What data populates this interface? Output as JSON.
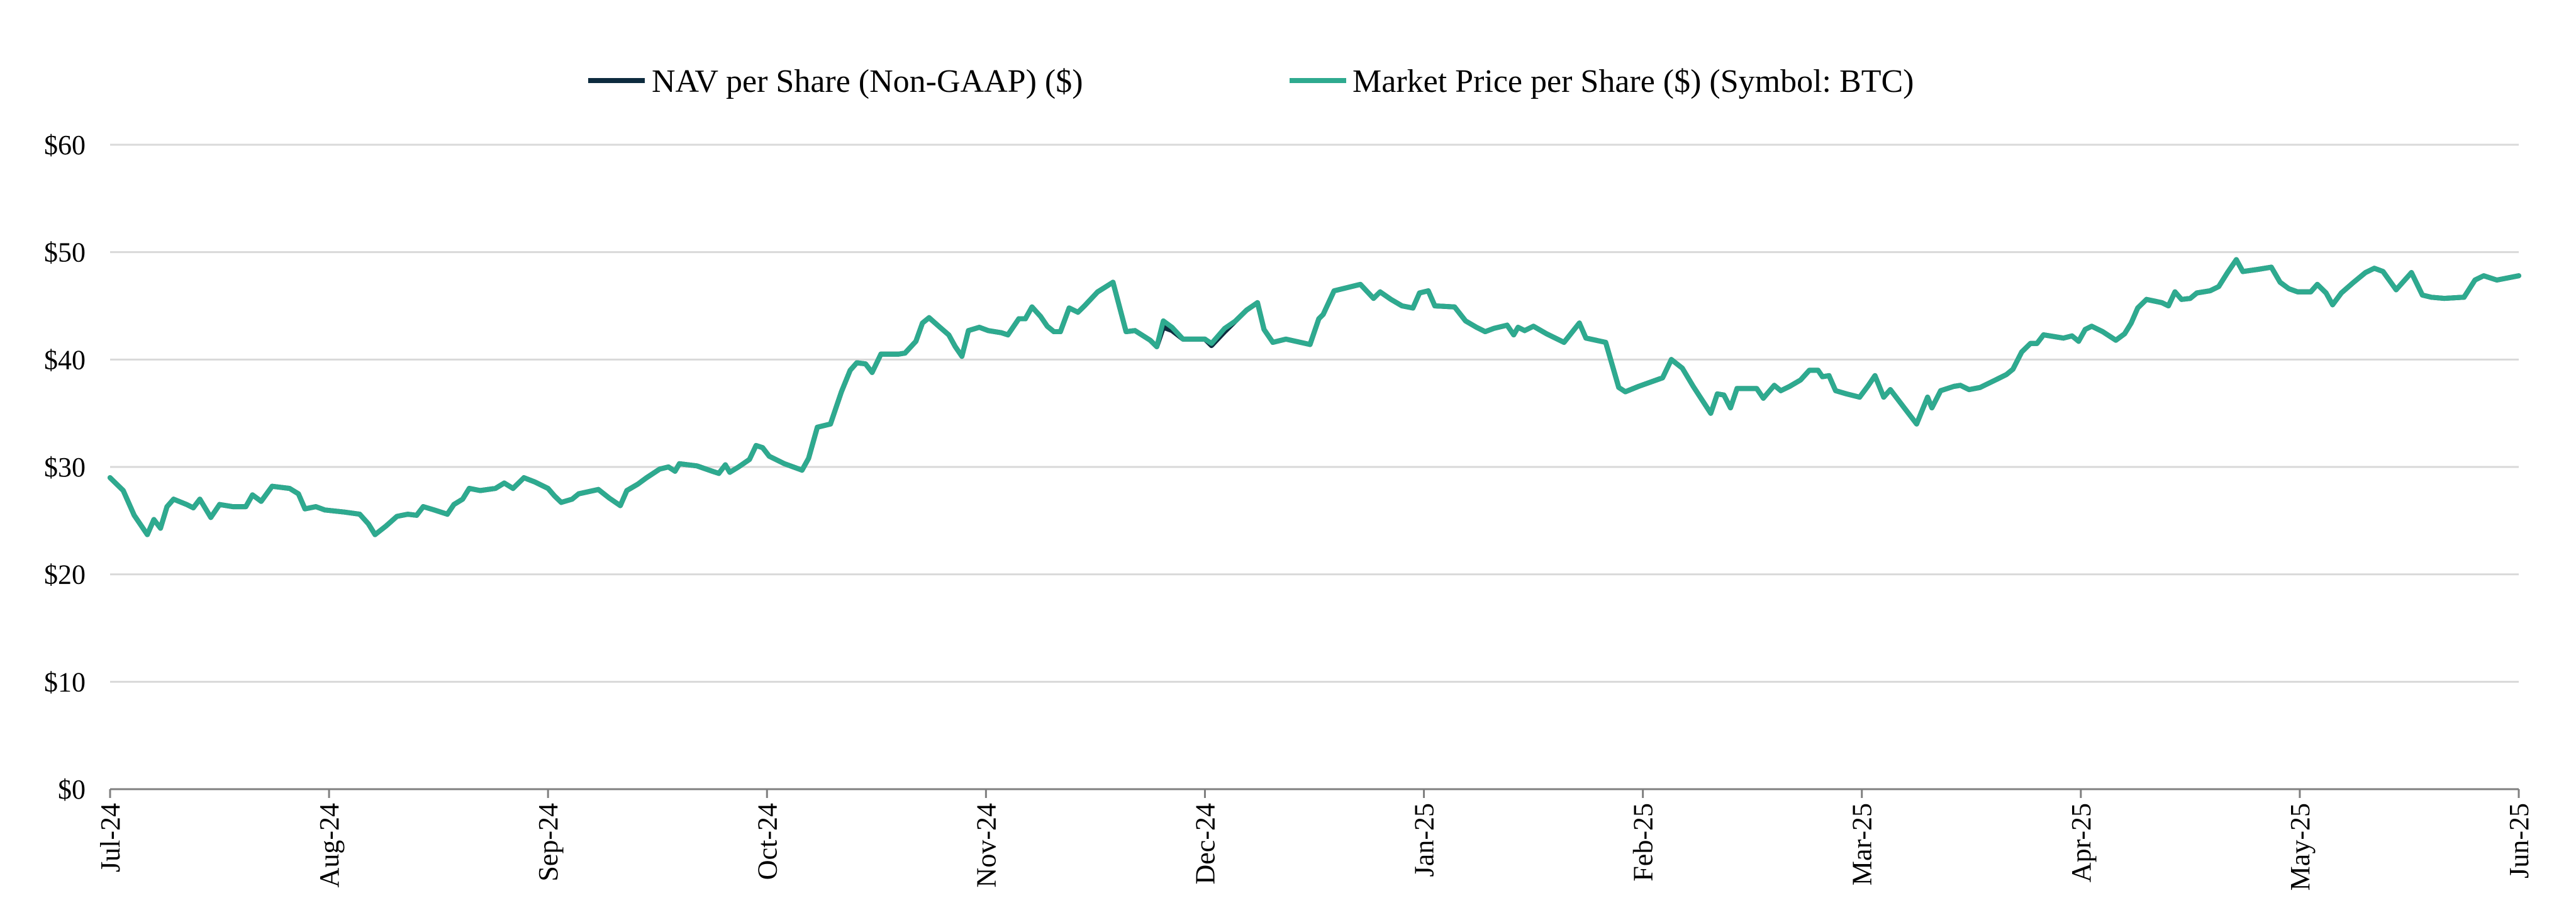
{
  "chart_data": {
    "type": "line",
    "legend": "top",
    "grid": true,
    "xlim": [
      0,
      11
    ],
    "xticks": [
      {
        "value": 0,
        "label": "Jul-24"
      },
      {
        "value": 1,
        "label": "Aug-24"
      },
      {
        "value": 2,
        "label": "Sep-24"
      },
      {
        "value": 3,
        "label": "Oct-24"
      },
      {
        "value": 4,
        "label": "Nov-24"
      },
      {
        "value": 5,
        "label": "Dec-24"
      },
      {
        "value": 6,
        "label": "Jan-25"
      },
      {
        "value": 7,
        "label": "Feb-25"
      },
      {
        "value": 8,
        "label": "Mar-25"
      },
      {
        "value": 9,
        "label": "Apr-25"
      },
      {
        "value": 10,
        "label": "May-25"
      },
      {
        "value": 11,
        "label": "Jun-25"
      }
    ],
    "ylim": [
      0,
      60
    ],
    "yticks": [
      {
        "value": 0,
        "label": "$0"
      },
      {
        "value": 10,
        "label": "$10"
      },
      {
        "value": 20,
        "label": "$20"
      },
      {
        "value": 30,
        "label": "$30"
      },
      {
        "value": 40,
        "label": "$40"
      },
      {
        "value": 50,
        "label": "$50"
      },
      {
        "value": 60,
        "label": "$60"
      }
    ],
    "x": [
      0,
      0.06,
      0.11,
      0.17,
      0.2,
      0.23,
      0.26,
      0.29,
      0.35,
      0.38,
      0.41,
      0.46,
      0.5,
      0.56,
      0.62,
      0.65,
      0.69,
      0.74,
      0.82,
      0.86,
      0.89,
      0.94,
      0.98,
      1.07,
      1.14,
      1.18,
      1.21,
      1.26,
      1.31,
      1.36,
      1.4,
      1.43,
      1.48,
      1.54,
      1.57,
      1.61,
      1.64,
      1.69,
      1.76,
      1.8,
      1.84,
      1.89,
      1.94,
      2,
      2.03,
      2.06,
      2.11,
      2.14,
      2.23,
      2.28,
      2.33,
      2.36,
      2.41,
      2.45,
      2.51,
      2.55,
      2.58,
      2.6,
      2.68,
      2.75,
      2.78,
      2.81,
      2.83,
      2.87,
      2.92,
      2.95,
      2.98,
      3.01,
      3.08,
      3.16,
      3.19,
      3.23,
      3.29,
      3.34,
      3.38,
      3.41,
      3.45,
      3.48,
      3.52,
      3.6,
      3.63,
      3.68,
      3.71,
      3.74,
      3.79,
      3.83,
      3.86,
      3.89,
      3.92,
      3.97,
      4.01,
      4.07,
      4.1,
      4.15,
      4.18,
      4.21,
      4.25,
      4.28,
      4.31,
      4.34,
      4.38,
      4.42,
      4.45,
      4.51,
      4.58,
      4.64,
      4.68,
      4.75,
      4.78,
      4.81,
      4.85,
      4.9,
      5,
      5.03,
      5.09,
      5.14,
      5.19,
      5.24,
      5.27,
      5.31,
      5.37,
      5.48,
      5.52,
      5.54,
      5.59,
      5.65,
      5.71,
      5.77,
      5.8,
      5.85,
      5.9,
      5.95,
      5.98,
      6.02,
      6.05,
      6.14,
      6.19,
      6.24,
      6.28,
      6.32,
      6.38,
      6.41,
      6.43,
      6.46,
      6.5,
      6.56,
      6.64,
      6.71,
      6.74,
      6.83,
      6.89,
      6.92,
      6.98,
      7.09,
      7.13,
      7.18,
      7.23,
      7.31,
      7.34,
      7.37,
      7.4,
      7.43,
      7.52,
      7.55,
      7.6,
      7.63,
      7.67,
      7.72,
      7.76,
      7.8,
      7.82,
      7.85,
      7.88,
      7.93,
      7.99,
      8.03,
      8.06,
      8.1,
      8.13,
      8.19,
      8.25,
      8.3,
      8.32,
      8.36,
      8.42,
      8.45,
      8.49,
      8.54,
      8.61,
      8.66,
      8.69,
      8.73,
      8.77,
      8.8,
      8.83,
      8.89,
      8.92,
      8.96,
      8.99,
      9.02,
      9.05,
      9.1,
      9.16,
      9.2,
      9.23,
      9.26,
      9.3,
      9.37,
      9.4,
      9.43,
      9.46,
      9.5,
      9.53,
      9.59,
      9.63,
      9.67,
      9.71,
      9.74,
      9.81,
      9.87,
      9.91,
      9.95,
      9.99,
      10.05,
      10.08,
      10.12,
      10.15,
      10.19,
      10.24,
      10.3,
      10.34,
      10.38,
      10.44,
      10.51,
      10.56,
      10.6,
      10.66,
      10.75,
      10.8,
      10.84,
      10.9,
      11
    ],
    "series": [
      {
        "name": "NAV per Share (Non-GAAP) ($)",
        "color": "#0d2b3e",
        "values": [
          29,
          27.8,
          25.5,
          23.7,
          25.1,
          24.3,
          26.3,
          27,
          26.5,
          26.2,
          27,
          25.3,
          26.5,
          26.3,
          26.3,
          27.4,
          26.8,
          28.2,
          28,
          27.5,
          26.1,
          26.3,
          26,
          25.8,
          25.6,
          24.7,
          23.7,
          24.5,
          25.4,
          25.6,
          25.5,
          26.3,
          26,
          25.6,
          26.5,
          27,
          28,
          27.8,
          28,
          28.5,
          28,
          29,
          28.6,
          28,
          27.3,
          26.7,
          27,
          27.5,
          27.9,
          27.1,
          26.4,
          27.8,
          28.4,
          29,
          29.8,
          30,
          29.6,
          30.3,
          30.1,
          29.6,
          29.4,
          30.2,
          29.5,
          30,
          30.7,
          32,
          31.8,
          31,
          30.3,
          29.7,
          30.8,
          33.7,
          34,
          37,
          39,
          39.7,
          39.6,
          38.8,
          40.5,
          40.5,
          40.6,
          41.7,
          43.4,
          43.9,
          43,
          42.3,
          41.2,
          40.3,
          42.7,
          43,
          42.7,
          42.5,
          42.3,
          43.8,
          43.8,
          44.9,
          44,
          43.1,
          42.6,
          42.6,
          44.8,
          44.4,
          45,
          46.3,
          47.2,
          42.6,
          42.7,
          41.8,
          41.2,
          43,
          42.7,
          41.9,
          41.9,
          41.3,
          42.6,
          43.6,
          44.6,
          45.3,
          42.8,
          41.6,
          41.9,
          41.4,
          43.8,
          44.2,
          46.4,
          46.7,
          47,
          45.7,
          46.3,
          45.6,
          45,
          44.8,
          46.2,
          46.4,
          45,
          44.9,
          43.6,
          43,
          42.6,
          42.9,
          43.2,
          42.3,
          43,
          42.7,
          43.1,
          42.4,
          41.6,
          43.4,
          42,
          41.6,
          37.4,
          37,
          37.5,
          38.3,
          40,
          39.2,
          37.5,
          35,
          36.8,
          36.7,
          35.5,
          37.3,
          37.3,
          36.4,
          37.6,
          37.1,
          37.5,
          38.1,
          39,
          39,
          38.4,
          38.5,
          37.1,
          36.8,
          36.5,
          37.6,
          38.5,
          36.5,
          37.2,
          35.6,
          34,
          36.5,
          35.5,
          37.1,
          37.5,
          37.6,
          37.2,
          37.4,
          38.1,
          38.6,
          39.1,
          40.7,
          41.5,
          41.5,
          42.3,
          42.1,
          42,
          42.2,
          41.7,
          42.8,
          43.1,
          42.6,
          41.8,
          42.4,
          43.4,
          44.8,
          45.6,
          45.3,
          45,
          46.3,
          45.6,
          45.7,
          46.2,
          46.4,
          46.8,
          48.1,
          49.3,
          48.2,
          48.4,
          48.6,
          47.2,
          46.6,
          46.3,
          46.3,
          47,
          46.2,
          45.1,
          46.2,
          47.1,
          48.1,
          48.5,
          48.2,
          46.5,
          48.1,
          46,
          45.8,
          45.7,
          45.8,
          47.4,
          47.8,
          47.4,
          47.8
        ]
      },
      {
        "name": "Market Price per Share ($) (Symbol: BTC)",
        "color": "#2eaa8f",
        "values": [
          29,
          27.8,
          25.5,
          23.7,
          25.1,
          24.3,
          26.3,
          27,
          26.5,
          26.2,
          27,
          25.3,
          26.5,
          26.3,
          26.3,
          27.4,
          26.8,
          28.2,
          28,
          27.5,
          26.1,
          26.3,
          26,
          25.8,
          25.6,
          24.7,
          23.7,
          24.5,
          25.4,
          25.6,
          25.5,
          26.3,
          26,
          25.6,
          26.5,
          27,
          28,
          27.8,
          28,
          28.5,
          28,
          29,
          28.6,
          28,
          27.3,
          26.7,
          27,
          27.5,
          27.9,
          27.1,
          26.4,
          27.8,
          28.4,
          29,
          29.8,
          30,
          29.6,
          30.3,
          30.1,
          29.6,
          29.4,
          30.2,
          29.5,
          30,
          30.7,
          32,
          31.8,
          31,
          30.3,
          29.7,
          30.8,
          33.7,
          34,
          37,
          39,
          39.7,
          39.6,
          38.8,
          40.5,
          40.5,
          40.6,
          41.7,
          43.4,
          43.9,
          43,
          42.3,
          41.2,
          40.3,
          42.7,
          43,
          42.7,
          42.5,
          42.3,
          43.8,
          43.8,
          44.9,
          44,
          43.1,
          42.6,
          42.6,
          44.8,
          44.4,
          45,
          46.3,
          47.2,
          42.6,
          42.7,
          41.8,
          41.2,
          43.6,
          43,
          41.9,
          41.9,
          41.5,
          42.9,
          43.6,
          44.6,
          45.3,
          42.8,
          41.6,
          41.9,
          41.4,
          43.8,
          44.2,
          46.4,
          46.7,
          47,
          45.7,
          46.3,
          45.6,
          45,
          44.8,
          46.2,
          46.4,
          45,
          44.9,
          43.6,
          43,
          42.6,
          42.9,
          43.2,
          42.3,
          43,
          42.7,
          43.1,
          42.4,
          41.6,
          43.4,
          42,
          41.6,
          37.4,
          37,
          37.5,
          38.3,
          40,
          39.2,
          37.5,
          35,
          36.8,
          36.7,
          35.5,
          37.3,
          37.3,
          36.4,
          37.6,
          37.1,
          37.5,
          38.1,
          39,
          39,
          38.4,
          38.5,
          37.1,
          36.8,
          36.5,
          37.6,
          38.5,
          36.5,
          37.2,
          35.6,
          34,
          36.5,
          35.5,
          37.1,
          37.5,
          37.6,
          37.2,
          37.4,
          38.1,
          38.6,
          39.1,
          40.7,
          41.5,
          41.5,
          42.3,
          42.1,
          42,
          42.2,
          41.7,
          42.8,
          43.1,
          42.6,
          41.8,
          42.4,
          43.4,
          44.8,
          45.6,
          45.3,
          45,
          46.3,
          45.6,
          45.7,
          46.2,
          46.4,
          46.8,
          48.1,
          49.3,
          48.2,
          48.4,
          48.6,
          47.2,
          46.6,
          46.3,
          46.3,
          47,
          46.2,
          45.1,
          46.2,
          47.1,
          48.1,
          48.5,
          48.2,
          46.5,
          48.1,
          46,
          45.8,
          45.7,
          45.8,
          47.4,
          47.8,
          47.4,
          47.8
        ]
      }
    ]
  }
}
